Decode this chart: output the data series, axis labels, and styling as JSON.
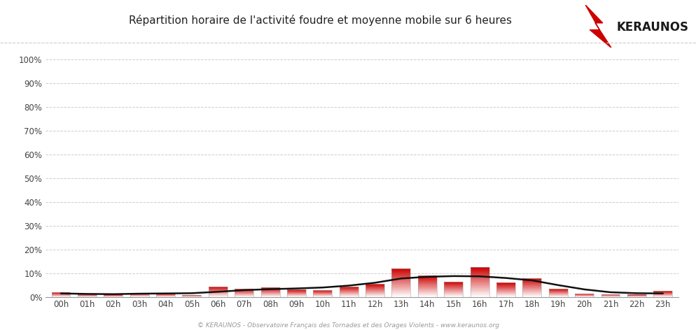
{
  "title": "Répartition horaire de l'activité foudre et moyenne mobile sur 6 heures",
  "hours": [
    "00h",
    "01h",
    "02h",
    "03h",
    "04h",
    "05h",
    "06h",
    "07h",
    "08h",
    "09h",
    "10h",
    "11h",
    "12h",
    "13h",
    "14h",
    "15h",
    "16h",
    "17h",
    "18h",
    "19h",
    "20h",
    "21h",
    "22h",
    "23h"
  ],
  "bar_values": [
    2.0,
    1.2,
    1.0,
    1.8,
    1.5,
    0.8,
    4.5,
    3.5,
    4.0,
    3.2,
    3.0,
    4.5,
    5.5,
    12.0,
    9.0,
    6.5,
    12.5,
    6.0,
    8.0,
    3.5,
    1.5,
    1.2,
    1.0,
    2.5
  ],
  "moving_avg": [
    1.5,
    1.3,
    1.2,
    1.4,
    1.5,
    1.6,
    2.2,
    2.9,
    3.3,
    3.6,
    4.0,
    4.8,
    6.0,
    7.8,
    8.5,
    8.8,
    8.7,
    8.0,
    7.0,
    5.0,
    3.2,
    2.0,
    1.6,
    1.5
  ],
  "bar_color_top": "#cc0000",
  "bar_color_bottom": "#ffffff",
  "line_color": "#111111",
  "background_color": "#ffffff",
  "grid_color": "#cccccc",
  "ylabel_ticks": [
    "0%",
    "10%",
    "20%",
    "30%",
    "40%",
    "50%",
    "60%",
    "70%",
    "80%",
    "90%",
    "100%"
  ],
  "ytick_vals": [
    0,
    10,
    20,
    30,
    40,
    50,
    60,
    70,
    80,
    90,
    100
  ],
  "ylim": [
    0,
    100
  ],
  "footer": "© KERAUNOS - Observatoire Français des Tornades et des Orages Violents - www.keraunos.org",
  "logo_text": "KERAUNOS",
  "logo_color": "#1a1a1a",
  "title_fontsize": 11,
  "bar_width": 0.72
}
